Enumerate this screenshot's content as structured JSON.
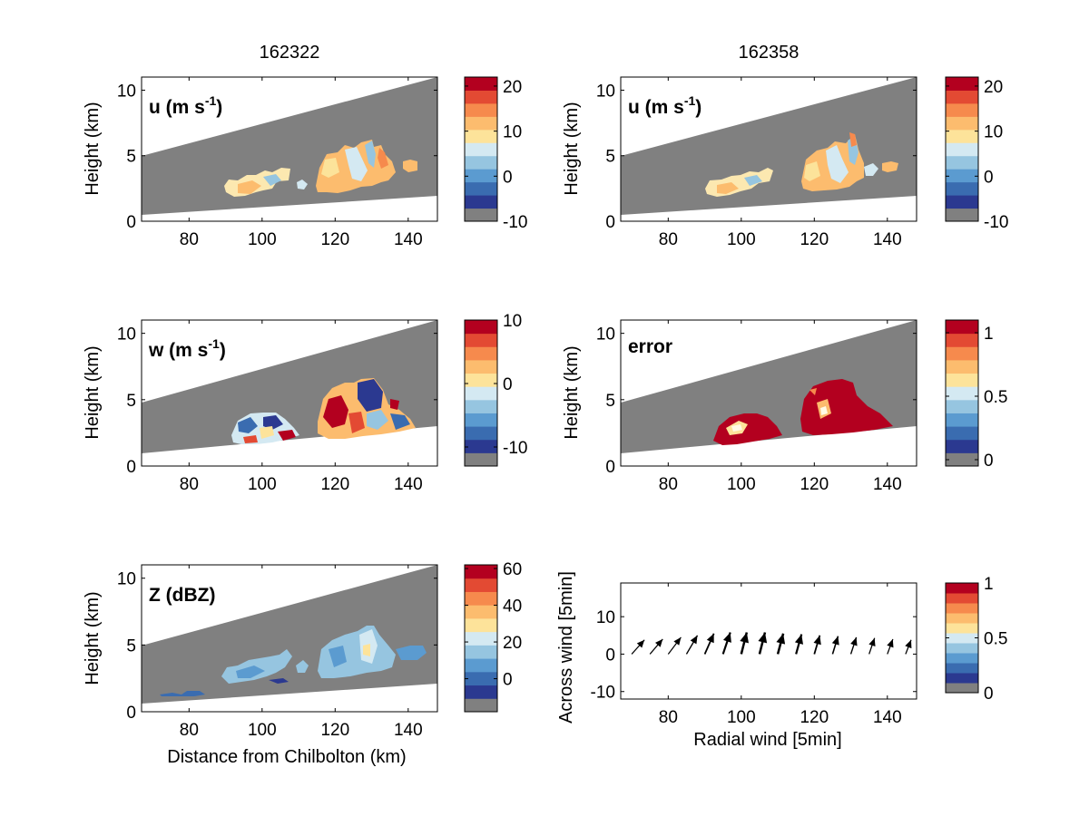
{
  "figure": {
    "col_titles": [
      "162322",
      "162358"
    ],
    "colormap": [
      "#808080",
      "#2b3990",
      "#3a6cb0",
      "#5b9bd0",
      "#96c5e0",
      "#d4e9f2",
      "#fde39a",
      "#fcbc6e",
      "#f68a4d",
      "#e34a33",
      "#b3001f"
    ]
  },
  "chart_data": [
    {
      "type": "heatmap",
      "panel": "u-162322",
      "title": "162322",
      "label": "u (m s⁻¹)",
      "ylabel": "Height (km)",
      "xlabel": "",
      "xlim": [
        67,
        148
      ],
      "ylim": [
        0,
        11
      ],
      "xticks": [
        "80",
        "100",
        "120",
        "140"
      ],
      "yticks": [
        "0",
        "5",
        "10"
      ],
      "colorbar": {
        "min": -10,
        "max": 22,
        "ticks": [
          "20",
          "10",
          "0",
          "-10"
        ]
      },
      "echo_regions": [
        {
          "x": [
            90,
            111
          ],
          "y": [
            2,
            4
          ],
          "value": "mixed"
        },
        {
          "x": [
            113,
            142
          ],
          "y": [
            2.5,
            6
          ],
          "value": "mixed"
        }
      ]
    },
    {
      "type": "heatmap",
      "panel": "u-162358",
      "title": "162358",
      "label": "u (m s⁻¹)",
      "ylabel": "Height (km)",
      "xlabel": "",
      "xlim": [
        67,
        148
      ],
      "ylim": [
        0,
        11
      ],
      "xticks": [
        "80",
        "100",
        "120",
        "140"
      ],
      "yticks": [
        "0",
        "5",
        "10"
      ],
      "colorbar": {
        "min": -10,
        "max": 22,
        "ticks": [
          "20",
          "10",
          "0",
          "-10"
        ]
      }
    },
    {
      "type": "heatmap",
      "panel": "w-162322",
      "label": "w (m s⁻¹)",
      "ylabel": "Height (km)",
      "xlabel": "",
      "xlim": [
        67,
        148
      ],
      "ylim": [
        0,
        11
      ],
      "xticks": [
        "80",
        "100",
        "120",
        "140"
      ],
      "yticks": [
        "0",
        "5",
        "10"
      ],
      "colorbar": {
        "min": -13,
        "max": 10,
        "ticks": [
          "10",
          "0",
          "-10"
        ]
      }
    },
    {
      "type": "heatmap",
      "panel": "error-162358",
      "label": "error",
      "ylabel": "Height (km)",
      "xlabel": "",
      "xlim": [
        67,
        148
      ],
      "ylim": [
        0,
        11
      ],
      "xticks": [
        "80",
        "100",
        "120",
        "140"
      ],
      "yticks": [
        "0",
        "5",
        "10"
      ],
      "colorbar": {
        "min": -0.05,
        "max": 1.1,
        "ticks": [
          "1",
          "0.5",
          "0"
        ]
      }
    },
    {
      "type": "heatmap",
      "panel": "Z-162322",
      "label": "Z (dBZ)",
      "ylabel": "Height (km)",
      "xlabel": "Distance from Chilbolton (km)",
      "xlim": [
        67,
        148
      ],
      "ylim": [
        0,
        11
      ],
      "xticks": [
        "80",
        "100",
        "120",
        "140"
      ],
      "yticks": [
        "0",
        "5",
        "10"
      ],
      "colorbar": {
        "min": -18,
        "max": 62,
        "ticks": [
          "60",
          "40",
          "20",
          "0"
        ]
      }
    },
    {
      "type": "scatter",
      "panel": "wind-vectors",
      "ylabel": "Across wind [5min]",
      "xlabel": "Radial wind [5min]",
      "xlim": [
        67,
        148
      ],
      "ylim": [
        -12,
        19
      ],
      "xticks": [
        "80",
        "100",
        "120",
        "140"
      ],
      "yticks": [
        "10",
        "0",
        "-10"
      ],
      "colorbar": {
        "min": 0,
        "max": 1,
        "ticks": [
          "1",
          "0.5",
          "0"
        ]
      },
      "vectors": {
        "x": [
          70,
          75,
          80,
          85,
          90,
          95,
          100,
          105,
          110,
          115,
          120,
          125,
          130,
          135,
          140,
          145
        ],
        "u": [
          3.5,
          3.5,
          3.5,
          3.0,
          2.5,
          2.0,
          1.5,
          1.5,
          1.5,
          1.5,
          1.5,
          1.5,
          1.5,
          1.5,
          1.5,
          1.5
        ],
        "v": [
          3.8,
          4.0,
          4.5,
          5.0,
          5.5,
          5.8,
          5.8,
          5.8,
          5.5,
          5.3,
          5.0,
          4.8,
          4.5,
          4.3,
          4.0,
          3.8
        ],
        "width": [
          1.2,
          1.2,
          1.2,
          1.4,
          1.8,
          2.2,
          2.5,
          2.5,
          2.5,
          2.2,
          1.8,
          1.6,
          1.4,
          1.3,
          1.3,
          1.3
        ]
      }
    }
  ]
}
